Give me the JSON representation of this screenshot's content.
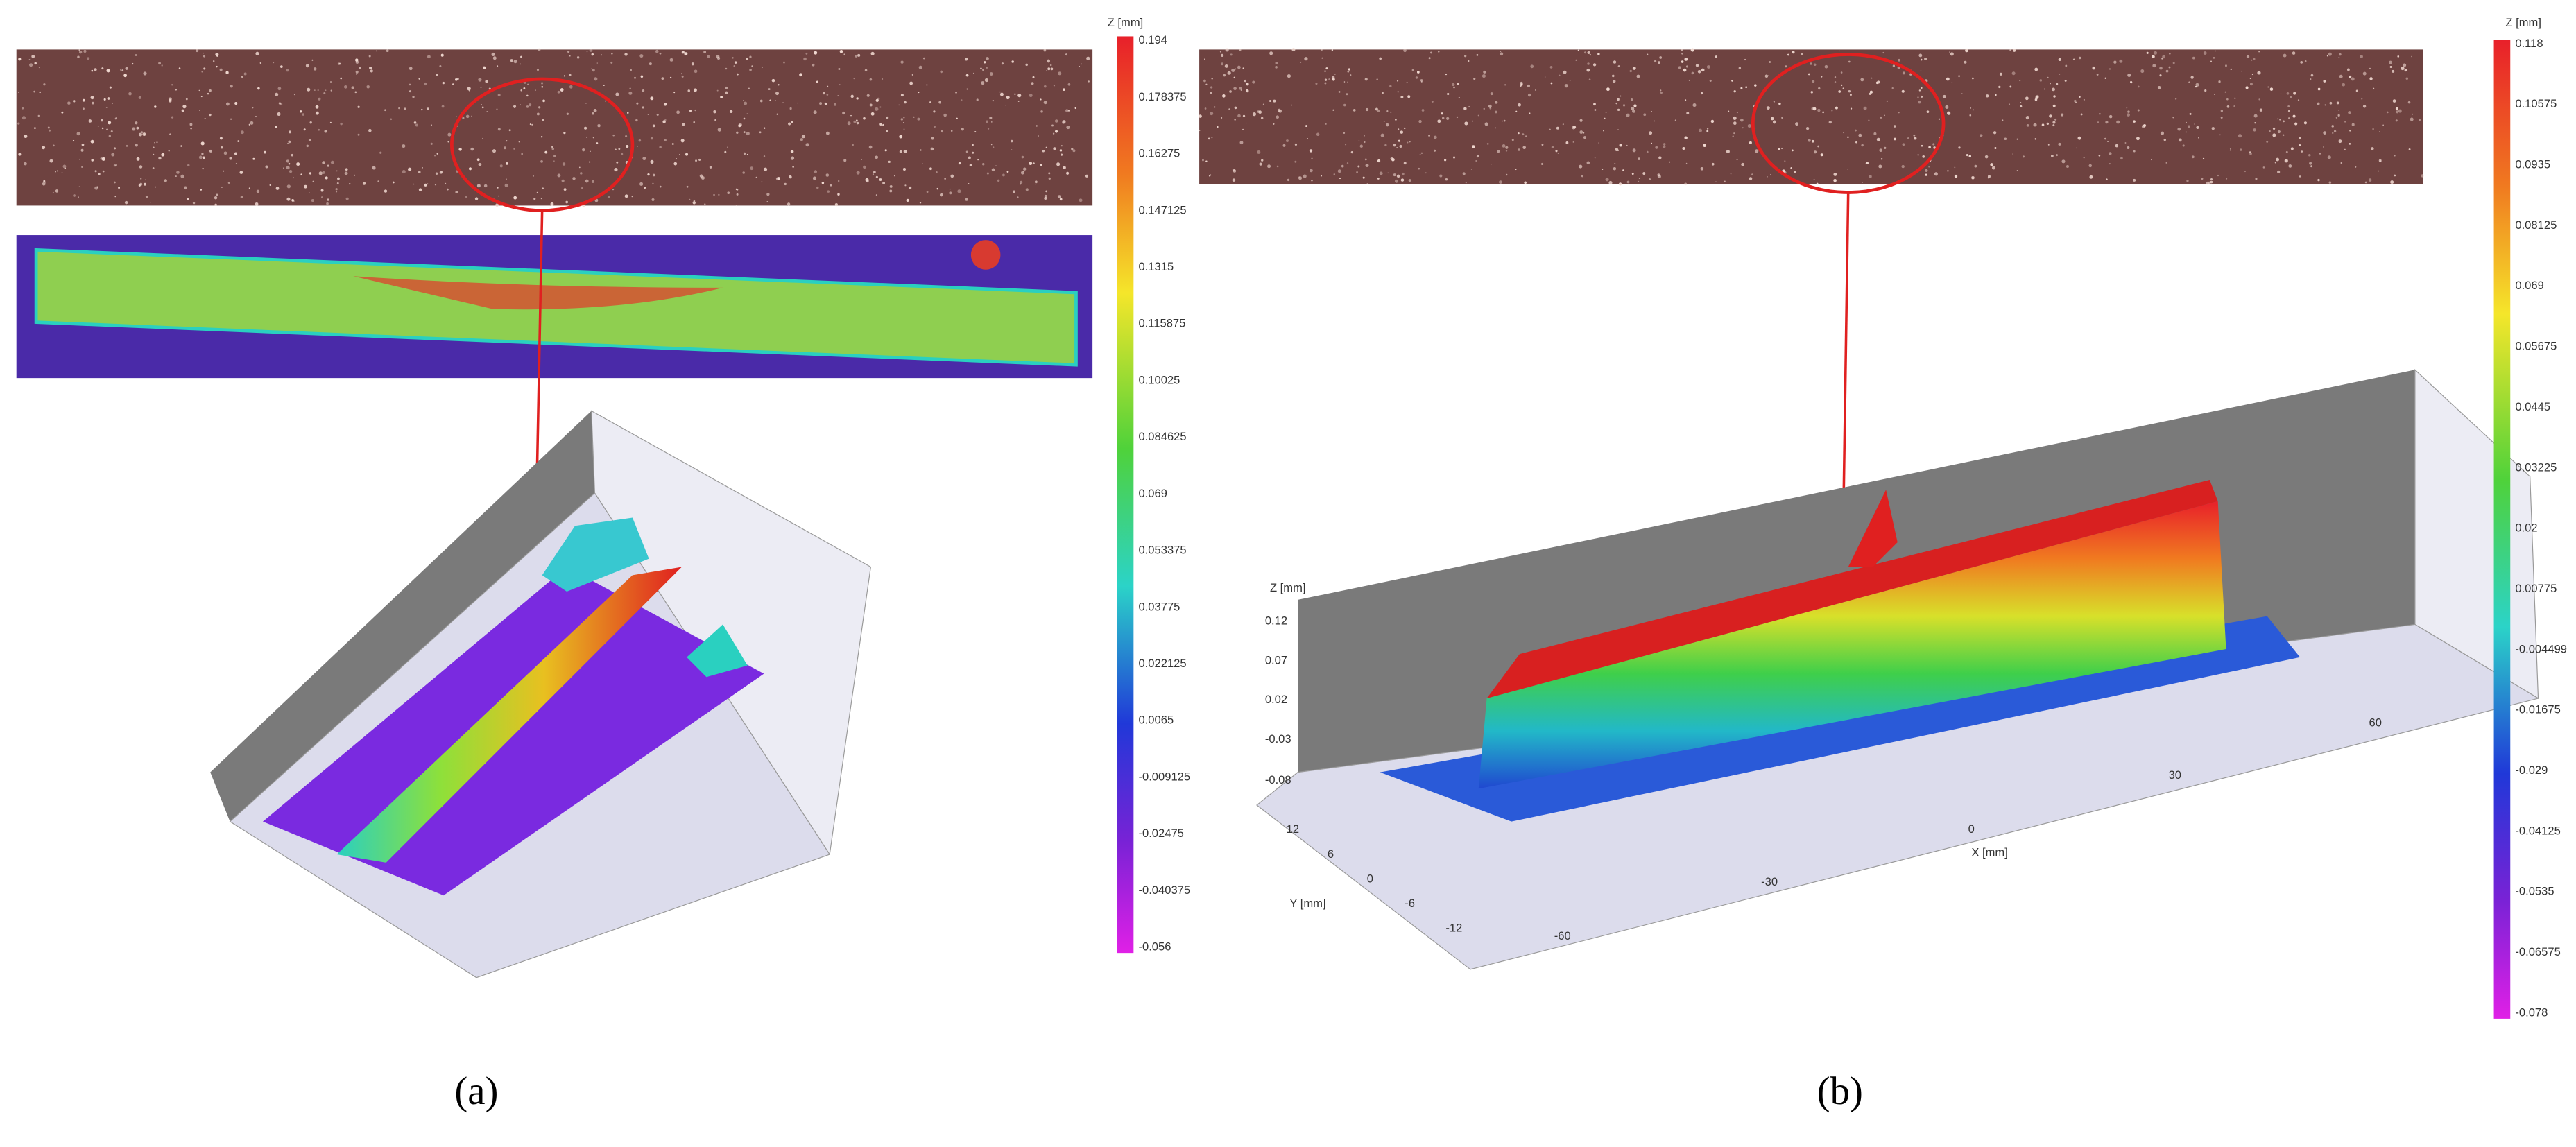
{
  "panel_a": {
    "colorbar": {
      "title": "Z [mm]",
      "labels": [
        "0.194",
        "0.178375",
        "0.16275",
        "0.147125",
        "0.1315",
        "0.115875",
        "0.10025",
        "0.084625",
        "0.069",
        "0.053375",
        "0.03775",
        "0.022125",
        "0.0065",
        "-0.009125",
        "-0.02475",
        "-0.040375",
        "-0.056"
      ]
    },
    "caption": "(a)"
  },
  "panel_b": {
    "colorbar": {
      "title": "Z [mm]",
      "labels": [
        "0.118",
        "0.10575",
        "0.0935",
        "0.08125",
        "0.069",
        "0.05675",
        "0.0445",
        "0.03225",
        "0.02",
        "0.00775",
        "-0.004499",
        "-0.01675",
        "-0.029",
        "-0.04125",
        "-0.0535",
        "-0.06575",
        "-0.078"
      ]
    },
    "axes": {
      "z_title": "Z [mm]",
      "z_ticks": [
        "0.12",
        "0.07",
        "0.02",
        "-0.03",
        "-0.08"
      ],
      "y_title": "Y [mm]",
      "y_ticks": [
        "12",
        "6",
        "0",
        "-6",
        "-12"
      ],
      "x_title": "X [mm]",
      "x_ticks": [
        "-60",
        "-30",
        "0",
        "30",
        "60"
      ]
    },
    "caption": "(b)"
  }
}
